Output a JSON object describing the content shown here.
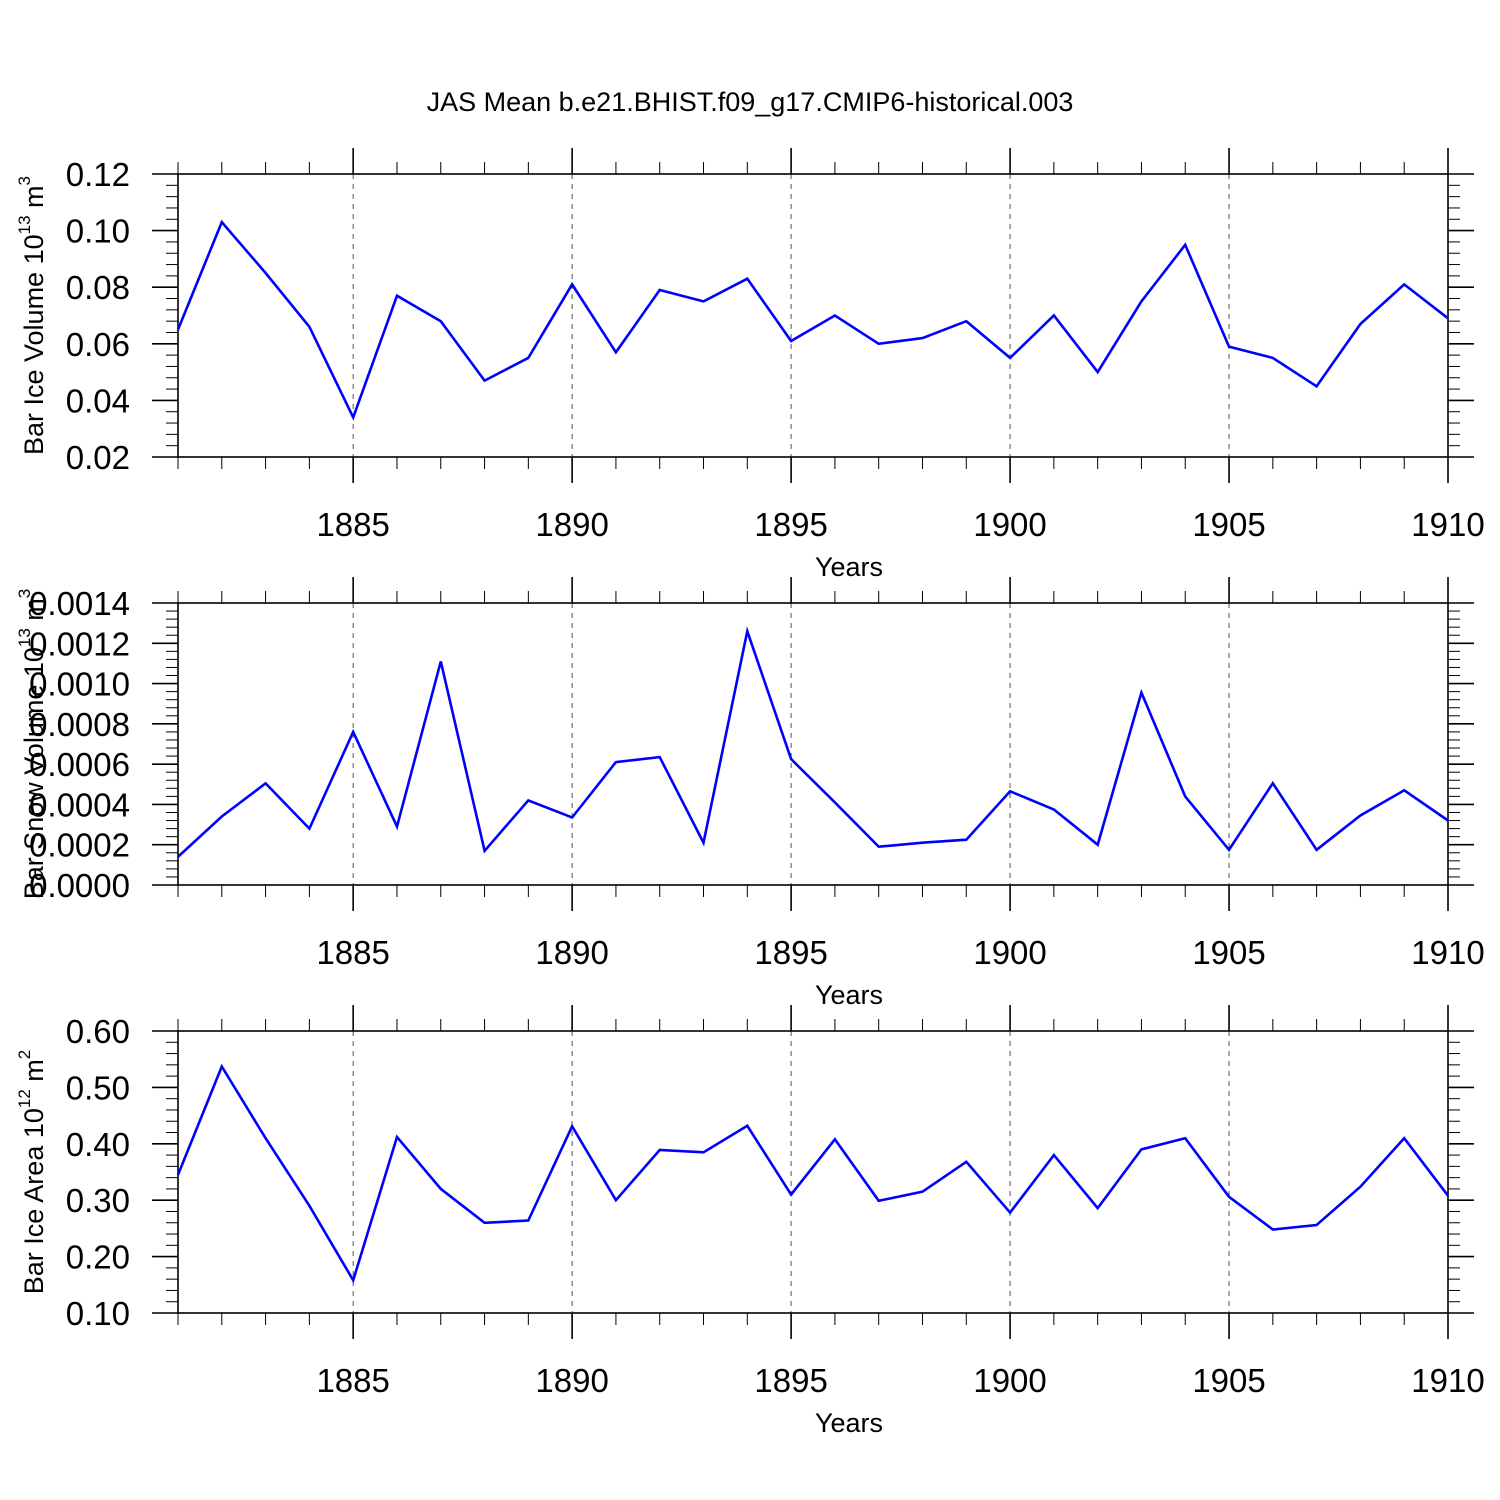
{
  "title": "JAS Mean b.e21.BHIST.f09_g17.CMIP6-historical.003",
  "colors": {
    "line": "#0000ff",
    "axis": "#000000",
    "grid": "#555555",
    "background": "#ffffff"
  },
  "chart_data": [
    {
      "type": "line",
      "ylabel": {
        "prefix": "Bar Ice Volume 10",
        "exp": "13",
        "unit": " m",
        "unit_exp": "3"
      },
      "xlabel": "Years",
      "xlim": [
        1881,
        1910
      ],
      "ylim": [
        0.02,
        0.12
      ],
      "yticks": [
        "0.02",
        "0.04",
        "0.06",
        "0.08",
        "0.10",
        "0.12"
      ],
      "xticks": [
        "1885",
        "1890",
        "1895",
        "1900",
        "1905",
        "1910"
      ],
      "grid": "vertical dashed at major x ticks",
      "x": [
        1881,
        1882,
        1883,
        1884,
        1885,
        1886,
        1887,
        1888,
        1889,
        1890,
        1891,
        1892,
        1893,
        1894,
        1895,
        1896,
        1897,
        1898,
        1899,
        1900,
        1901,
        1902,
        1903,
        1904,
        1905,
        1906,
        1907,
        1908,
        1909,
        1910
      ],
      "values": [
        0.065,
        0.103,
        0.085,
        0.066,
        0.034,
        0.077,
        0.068,
        0.047,
        0.055,
        0.081,
        0.057,
        0.079,
        0.075,
        0.083,
        0.061,
        0.07,
        0.06,
        0.062,
        0.068,
        0.055,
        0.07,
        0.05,
        0.075,
        0.095,
        0.059,
        0.055,
        0.045,
        0.067,
        0.081,
        0.069
      ]
    },
    {
      "type": "line",
      "ylabel": {
        "prefix": "Bar Snow Volume 10",
        "exp": "13",
        "unit": " m",
        "unit_exp": "3"
      },
      "xlabel": "Years",
      "xlim": [
        1881,
        1910
      ],
      "ylim": [
        0.0,
        0.0014
      ],
      "yticks": [
        "0.0000",
        "0.0002",
        "0.0004",
        "0.0006",
        "0.0008",
        "0.0010",
        "0.0012",
        "0.0014"
      ],
      "xticks": [
        "1885",
        "1890",
        "1895",
        "1900",
        "1905",
        "1910"
      ],
      "grid": "vertical dashed at major x ticks",
      "x": [
        1881,
        1882,
        1883,
        1884,
        1885,
        1886,
        1887,
        1888,
        1889,
        1890,
        1891,
        1892,
        1893,
        1894,
        1895,
        1896,
        1897,
        1898,
        1899,
        1900,
        1901,
        1902,
        1903,
        1904,
        1905,
        1906,
        1907,
        1908,
        1909,
        1910
      ],
      "values": [
        0.00014,
        0.00034,
        0.000505,
        0.00028,
        0.00076,
        0.00029,
        0.00111,
        0.00017,
        0.00042,
        0.000335,
        0.00061,
        0.000635,
        0.00021,
        0.00126,
        0.000625,
        0.00041,
        0.00019,
        0.00021,
        0.000225,
        0.000465,
        0.000375,
        0.0002,
        0.000955,
        0.00044,
        0.000175,
        0.000505,
        0.000175,
        0.000345,
        0.00047,
        0.00032
      ]
    },
    {
      "type": "line",
      "ylabel": {
        "prefix": "Bar Ice Area 10",
        "exp": "12",
        "unit": " m",
        "unit_exp": "2"
      },
      "xlabel": "Years",
      "xlim": [
        1881,
        1910
      ],
      "ylim": [
        0.1,
        0.6
      ],
      "yticks": [
        "0.10",
        "0.20",
        "0.30",
        "0.40",
        "0.50",
        "0.60"
      ],
      "xticks": [
        "1885",
        "1890",
        "1895",
        "1900",
        "1905",
        "1910"
      ],
      "grid": "vertical dashed at major x ticks",
      "x": [
        1881,
        1882,
        1883,
        1884,
        1885,
        1886,
        1887,
        1888,
        1889,
        1890,
        1891,
        1892,
        1893,
        1894,
        1895,
        1896,
        1897,
        1898,
        1899,
        1900,
        1901,
        1902,
        1903,
        1904,
        1905,
        1906,
        1907,
        1908,
        1909,
        1910
      ],
      "values": [
        0.345,
        0.537,
        0.41,
        0.29,
        0.158,
        0.412,
        0.32,
        0.26,
        0.264,
        0.431,
        0.3,
        0.389,
        0.385,
        0.432,
        0.31,
        0.408,
        0.299,
        0.315,
        0.368,
        0.278,
        0.38,
        0.286,
        0.39,
        0.41,
        0.306,
        0.248,
        0.256,
        0.324,
        0.41,
        0.308
      ]
    }
  ]
}
